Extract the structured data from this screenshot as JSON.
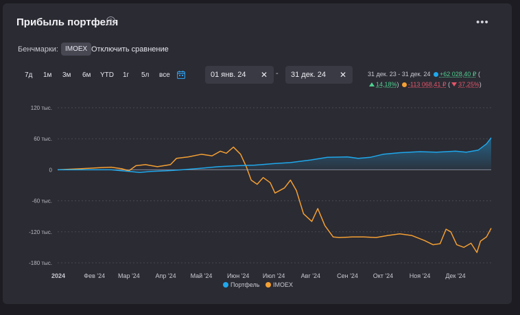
{
  "header": {
    "title": "Прибыль портфеля",
    "info_icon": "info-icon",
    "more_icon": "more-dots-icon"
  },
  "benchmarks": {
    "label": "Бенчмарки:",
    "chip": "IMOEX",
    "disable": "Отключить сравнение"
  },
  "periods": [
    "7д",
    "1м",
    "3м",
    "6м",
    "YTD",
    "1г",
    "5л",
    "все"
  ],
  "date_range": {
    "from": "01 янв. 24",
    "to": "31 дек. 24",
    "separator": "-",
    "clear_symbol": "✕"
  },
  "summary": {
    "range": "31 дек. 23 - 31 дек. 24",
    "portfolio_value": "+62 028,40 ₽",
    "portfolio_pct": "14,18%",
    "imoex_value": "-113 068,41 ₽",
    "imoex_pct": "37,25%",
    "open_paren": "(",
    "close_paren": ")"
  },
  "colors": {
    "portfolio": "#1fa8ec",
    "imoex": "#f5a033",
    "background": "#2b2b33",
    "grid": "#4a4a55",
    "positive": "#4fcf8f",
    "negative": "#e5556a"
  },
  "chart_data": {
    "type": "line",
    "title": "",
    "xlabel": "",
    "ylabel": "",
    "ylim": [
      -180000,
      120000
    ],
    "y_ticks": [
      {
        "value": 120000,
        "label": "120 тыс."
      },
      {
        "value": 60000,
        "label": "60 тыс."
      },
      {
        "value": 0,
        "label": "0"
      },
      {
        "value": -60000,
        "label": "-60 тыс."
      },
      {
        "value": -120000,
        "label": "-120 тыс."
      },
      {
        "value": -180000,
        "label": "-180 тыс."
      }
    ],
    "x_range": [
      "2024-01-01",
      "2024-12-31"
    ],
    "x_ticks": [
      {
        "date": "2024-01-01",
        "label": "2024"
      },
      {
        "date": "2024-02-01",
        "label": "Фев '24"
      },
      {
        "date": "2024-03-01",
        "label": "Мар '24"
      },
      {
        "date": "2024-04-01",
        "label": "Апр '24"
      },
      {
        "date": "2024-05-01",
        "label": "Май '24"
      },
      {
        "date": "2024-06-01",
        "label": "Июн '24"
      },
      {
        "date": "2024-07-01",
        "label": "Июл '24"
      },
      {
        "date": "2024-08-01",
        "label": "Авг '24"
      },
      {
        "date": "2024-09-01",
        "label": "Сен '24"
      },
      {
        "date": "2024-10-01",
        "label": "Окт '24"
      },
      {
        "date": "2024-11-01",
        "label": "Ноя '24"
      },
      {
        "date": "2024-12-01",
        "label": "Дек '24"
      }
    ],
    "series": [
      {
        "name": "Портфель",
        "color": "#1fa8ec",
        "points": [
          [
            "2024-01-01",
            0
          ],
          [
            "2024-01-15",
            0
          ],
          [
            "2024-02-01",
            0
          ],
          [
            "2024-02-15",
            0
          ],
          [
            "2024-03-01",
            -3000
          ],
          [
            "2024-03-10",
            -5000
          ],
          [
            "2024-03-20",
            -3000
          ],
          [
            "2024-04-01",
            -2000
          ],
          [
            "2024-04-15",
            0
          ],
          [
            "2024-05-01",
            3000
          ],
          [
            "2024-05-15",
            6000
          ],
          [
            "2024-06-01",
            8000
          ],
          [
            "2024-06-15",
            9000
          ],
          [
            "2024-07-01",
            12000
          ],
          [
            "2024-07-15",
            14000
          ],
          [
            "2024-08-01",
            19000
          ],
          [
            "2024-08-15",
            24000
          ],
          [
            "2024-09-01",
            25000
          ],
          [
            "2024-09-10",
            22000
          ],
          [
            "2024-09-20",
            24000
          ],
          [
            "2024-10-01",
            30000
          ],
          [
            "2024-10-15",
            33000
          ],
          [
            "2024-11-01",
            35000
          ],
          [
            "2024-11-15",
            34000
          ],
          [
            "2024-12-01",
            36000
          ],
          [
            "2024-12-10",
            34000
          ],
          [
            "2024-12-20",
            38000
          ],
          [
            "2024-12-27",
            50000
          ],
          [
            "2024-12-31",
            62000
          ]
        ]
      },
      {
        "name": "IMOEX",
        "color": "#f5a033",
        "points": [
          [
            "2024-01-01",
            0
          ],
          [
            "2024-01-20",
            2000
          ],
          [
            "2024-02-05",
            4000
          ],
          [
            "2024-02-15",
            5000
          ],
          [
            "2024-02-24",
            2000
          ],
          [
            "2024-03-01",
            -2000
          ],
          [
            "2024-03-07",
            8000
          ],
          [
            "2024-03-15",
            10000
          ],
          [
            "2024-03-25",
            6000
          ],
          [
            "2024-04-05",
            10000
          ],
          [
            "2024-04-10",
            22000
          ],
          [
            "2024-04-20",
            25000
          ],
          [
            "2024-05-01",
            30000
          ],
          [
            "2024-05-10",
            27000
          ],
          [
            "2024-05-17",
            36000
          ],
          [
            "2024-05-22",
            32000
          ],
          [
            "2024-05-28",
            44000
          ],
          [
            "2024-06-03",
            30000
          ],
          [
            "2024-06-08",
            5000
          ],
          [
            "2024-06-12",
            -20000
          ],
          [
            "2024-06-17",
            -28000
          ],
          [
            "2024-06-22",
            -15000
          ],
          [
            "2024-06-28",
            -25000
          ],
          [
            "2024-07-02",
            -45000
          ],
          [
            "2024-07-10",
            -35000
          ],
          [
            "2024-07-15",
            -20000
          ],
          [
            "2024-07-20",
            -40000
          ],
          [
            "2024-07-26",
            -85000
          ],
          [
            "2024-08-02",
            -100000
          ],
          [
            "2024-08-07",
            -75000
          ],
          [
            "2024-08-13",
            -108000
          ],
          [
            "2024-08-20",
            -130000
          ],
          [
            "2024-08-25",
            -131000
          ],
          [
            "2024-09-05",
            -130000
          ],
          [
            "2024-09-15",
            -130000
          ],
          [
            "2024-09-25",
            -131000
          ],
          [
            "2024-10-05",
            -127000
          ],
          [
            "2024-10-15",
            -124000
          ],
          [
            "2024-10-25",
            -127000
          ],
          [
            "2024-11-05",
            -137000
          ],
          [
            "2024-11-12",
            -145000
          ],
          [
            "2024-11-18",
            -143000
          ],
          [
            "2024-11-23",
            -115000
          ],
          [
            "2024-11-27",
            -120000
          ],
          [
            "2024-12-02",
            -145000
          ],
          [
            "2024-12-08",
            -150000
          ],
          [
            "2024-12-14",
            -142000
          ],
          [
            "2024-12-19",
            -160000
          ],
          [
            "2024-12-22",
            -138000
          ],
          [
            "2024-12-27",
            -130000
          ],
          [
            "2024-12-31",
            -113000
          ]
        ]
      }
    ],
    "legend": [
      "Портфель",
      "IMOEX"
    ],
    "legend_position": "bottom",
    "grid": true
  }
}
